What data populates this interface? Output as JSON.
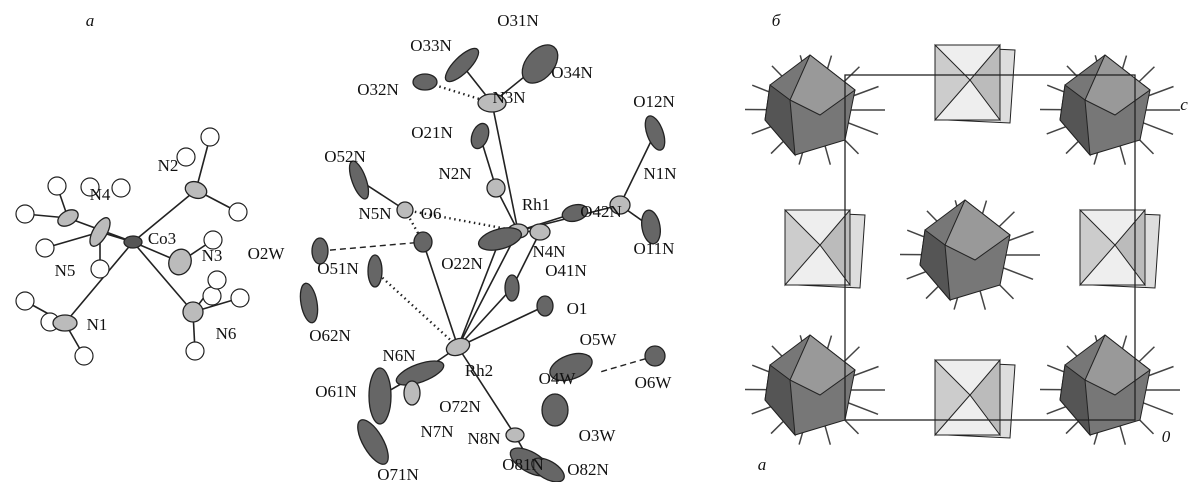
{
  "panel_a": {
    "label": "а",
    "cobalt_complex": [
      "N4",
      "N2",
      "Co3",
      "N5",
      "N3",
      "N1",
      "N6"
    ],
    "rhodium_complex": [
      "O31N",
      "O33N",
      "O34N",
      "O32N",
      "N3N",
      "O21N",
      "O12N",
      "O52N",
      "N2N",
      "Rh1",
      "N1N",
      "N5N",
      "O6",
      "O42N",
      "O2W",
      "N4N",
      "O22N",
      "O11N",
      "O41N",
      "O51N",
      "O62N",
      "N6N",
      "O1",
      "O5W",
      "Rh2",
      "O4W",
      "O6W",
      "O61N",
      "O72N",
      "N7N",
      "N8N",
      "O3W",
      "O81N",
      "O82N",
      "O71N"
    ]
  },
  "panel_b": {
    "label": "б",
    "axis_labels": [
      "c",
      "a",
      "0"
    ]
  }
}
